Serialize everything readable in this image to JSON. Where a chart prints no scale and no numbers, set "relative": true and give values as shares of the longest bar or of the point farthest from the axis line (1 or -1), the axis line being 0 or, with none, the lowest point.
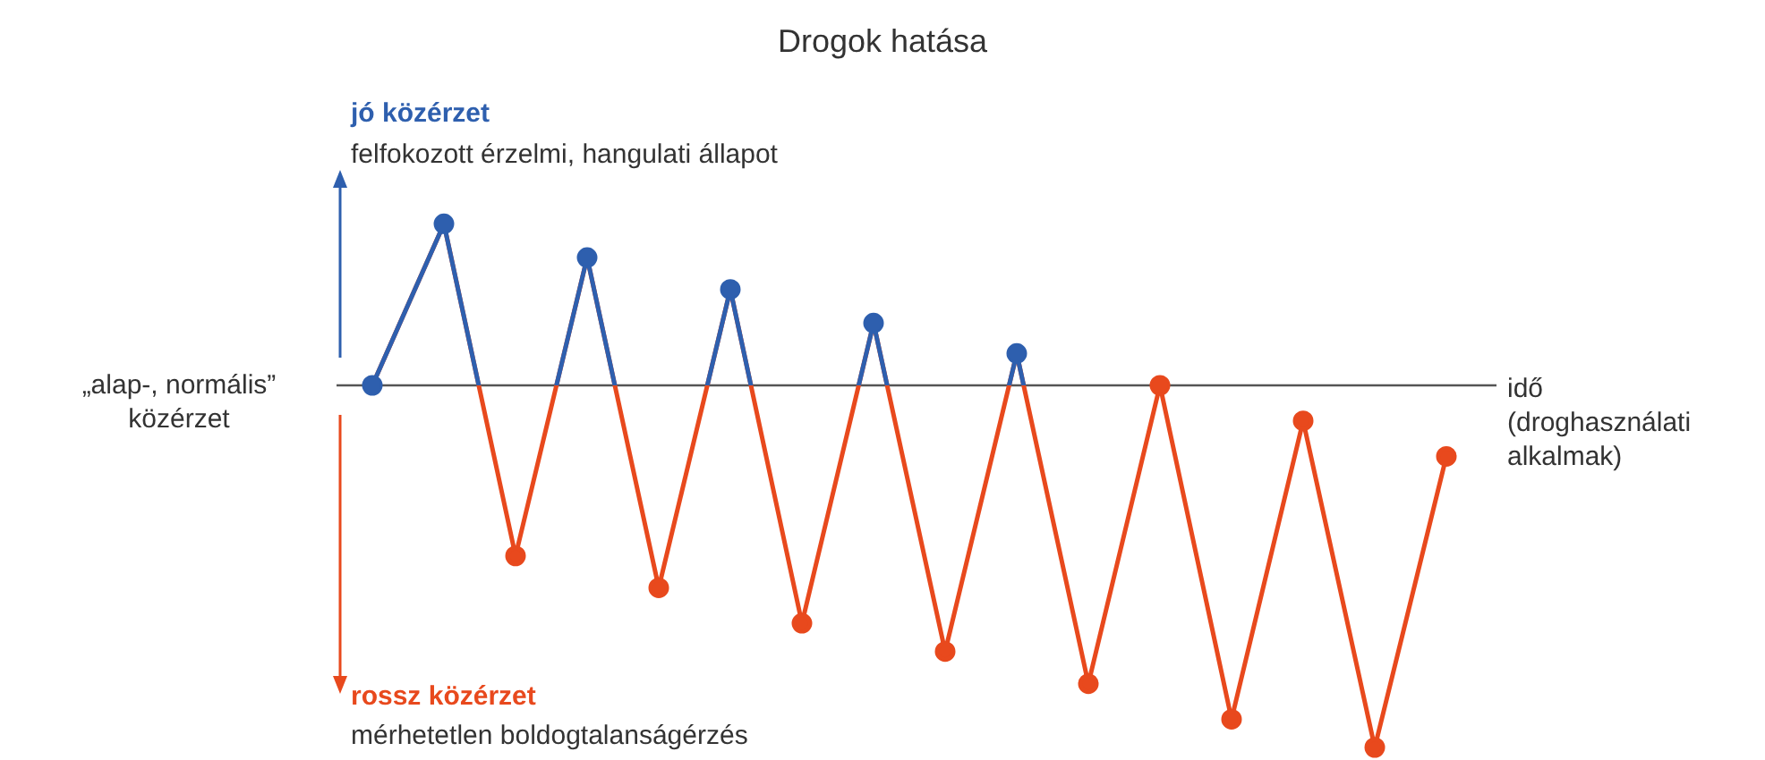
{
  "chart_data": {
    "type": "line",
    "title": "Drogok hatása",
    "relative": true,
    "marker": "circle",
    "legend": false,
    "categories": [
      null,
      null,
      null,
      null,
      null,
      null,
      null,
      null,
      null,
      null,
      null,
      null,
      null,
      null,
      null,
      null
    ],
    "series": [
      {
        "color": "#e8491d",
        "values": [
          0,
          0.446,
          -0.471,
          0.353,
          -0.559,
          0.265,
          -0.657,
          0.172,
          -0.735,
          0.088,
          -0.824,
          0,
          -0.922,
          -0.098,
          -1,
          -0.196
        ],
        "colors": [
          "#2e5fae",
          "#2e5fae",
          "#e8491d",
          "#2e5fae",
          "#e8491d",
          "#2e5fae",
          "#e8491d",
          "#2e5fae",
          "#e8491d",
          "#2e5fae",
          "#e8491d",
          "#e8491d",
          "#e8491d",
          "#e8491d",
          "#e8491d",
          "#e8491d"
        ]
      }
    ],
    "annotations": [
      "jó közérzet",
      "felfokozott érzelmi, hangulati állapot",
      "„alap-, normális” közérzet",
      "idő (droghasználati alkalmak)",
      "rossz közérzet",
      "mérhetetlen boldogtalanságérzés"
    ]
  }
}
